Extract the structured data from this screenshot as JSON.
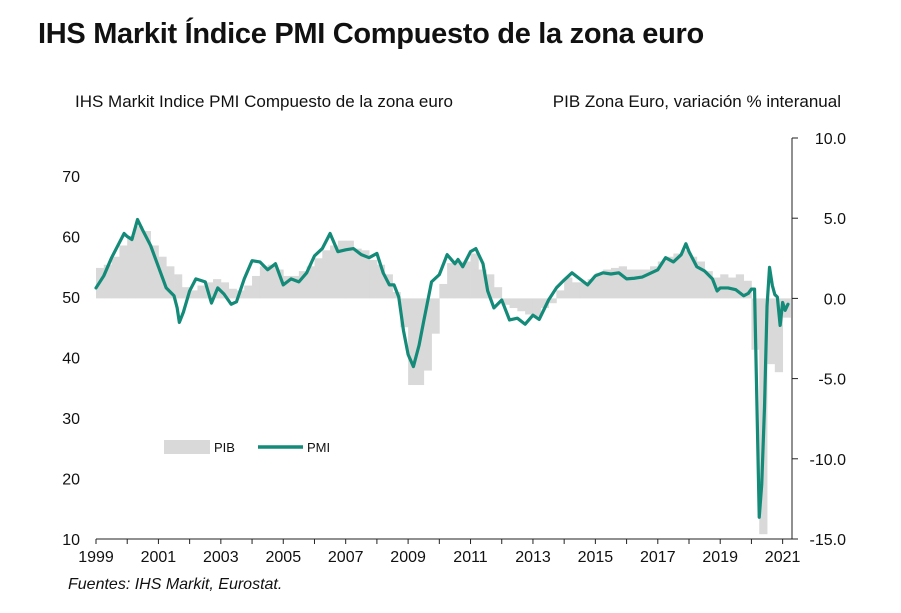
{
  "page": {
    "title": "IHS Markit Índice PMI Compuesto de la zona euro",
    "subtitle_left": "IHS Markit Indice PMI Compuesto de la zona euro",
    "subtitle_right": "PIB Zona Euro, variación % interanual",
    "source": "Fuentes: IHS Markit, Eurostat."
  },
  "chart_data": {
    "type": "line",
    "colors": {
      "pmi": "#148a78",
      "gdp": "#d9d9d9"
    },
    "x_ticks": [
      "1999",
      "2001",
      "2003",
      "2005",
      "2007",
      "2009",
      "2011",
      "2013",
      "2015",
      "2017",
      "2019",
      "2021"
    ],
    "y_left": {
      "ylim": [
        10,
        70
      ],
      "ticks": [
        "10",
        "20",
        "30",
        "40",
        "50",
        "60",
        "70"
      ]
    },
    "y_right": {
      "ylim": [
        -15,
        10
      ],
      "ticks": [
        "-15.0",
        "-10.0",
        "-5.0",
        "0.0",
        "5.0",
        "10.0"
      ]
    },
    "legend": {
      "position": "center-left",
      "items": [
        "PIB",
        "PMI"
      ]
    },
    "series": [
      {
        "name": "PMI",
        "kind": "line",
        "axis": "left",
        "points": [
          [
            1999.0,
            51.5
          ],
          [
            1999.25,
            53.5
          ],
          [
            1999.5,
            56.5
          ],
          [
            1999.75,
            59
          ],
          [
            1999.9,
            60.5
          ],
          [
            2000.0,
            60
          ],
          [
            2000.15,
            59.5
          ],
          [
            2000.33,
            62.8
          ],
          [
            2000.5,
            61
          ],
          [
            2000.75,
            58.5
          ],
          [
            2001.0,
            55
          ],
          [
            2001.25,
            51.5
          ],
          [
            2001.5,
            50.2
          ],
          [
            2001.6,
            48.2
          ],
          [
            2001.67,
            45.8
          ],
          [
            2001.8,
            47.5
          ],
          [
            2002.0,
            51
          ],
          [
            2002.2,
            53
          ],
          [
            2002.5,
            52.5
          ],
          [
            2002.7,
            49
          ],
          [
            2002.9,
            51.5
          ],
          [
            2003.1,
            50.5
          ],
          [
            2003.33,
            48.8
          ],
          [
            2003.5,
            49.2
          ],
          [
            2003.75,
            53
          ],
          [
            2004.0,
            56
          ],
          [
            2004.25,
            55.8
          ],
          [
            2004.5,
            54.5
          ],
          [
            2004.75,
            55.5
          ],
          [
            2005.0,
            52
          ],
          [
            2005.25,
            53
          ],
          [
            2005.5,
            52.5
          ],
          [
            2005.75,
            54
          ],
          [
            2006.0,
            56.8
          ],
          [
            2006.25,
            58
          ],
          [
            2006.5,
            60.5
          ],
          [
            2006.75,
            57.5
          ],
          [
            2007.0,
            57.8
          ],
          [
            2007.25,
            58
          ],
          [
            2007.5,
            57
          ],
          [
            2007.75,
            56.5
          ],
          [
            2008.0,
            57.2
          ],
          [
            2008.2,
            54
          ],
          [
            2008.4,
            52
          ],
          [
            2008.55,
            52
          ],
          [
            2008.7,
            50
          ],
          [
            2008.85,
            44.5
          ],
          [
            2009.0,
            40.5
          ],
          [
            2009.17,
            38.5
          ],
          [
            2009.35,
            42
          ],
          [
            2009.5,
            46
          ],
          [
            2009.75,
            52.5
          ],
          [
            2010.0,
            53.7
          ],
          [
            2010.25,
            57
          ],
          [
            2010.5,
            55.5
          ],
          [
            2010.6,
            56.2
          ],
          [
            2010.75,
            55
          ],
          [
            2011.0,
            57.5
          ],
          [
            2011.17,
            58
          ],
          [
            2011.4,
            55.5
          ],
          [
            2011.55,
            51
          ],
          [
            2011.75,
            48.2
          ],
          [
            2012.0,
            49.5
          ],
          [
            2012.25,
            46.2
          ],
          [
            2012.5,
            46.5
          ],
          [
            2012.75,
            45.5
          ],
          [
            2013.0,
            47
          ],
          [
            2013.2,
            46.3
          ],
          [
            2013.5,
            49.5
          ],
          [
            2013.75,
            51.5
          ],
          [
            2014.0,
            52.8
          ],
          [
            2014.25,
            54
          ],
          [
            2014.5,
            53
          ],
          [
            2014.75,
            52
          ],
          [
            2015.0,
            53.5
          ],
          [
            2015.25,
            54
          ],
          [
            2015.5,
            53.8
          ],
          [
            2015.75,
            54
          ],
          [
            2016.0,
            53
          ],
          [
            2016.25,
            53.1
          ],
          [
            2016.5,
            53.3
          ],
          [
            2016.75,
            53.9
          ],
          [
            2017.0,
            54.5
          ],
          [
            2017.25,
            56.5
          ],
          [
            2017.5,
            55.8
          ],
          [
            2017.75,
            57
          ],
          [
            2017.9,
            58.8
          ],
          [
            2018.0,
            57.5
          ],
          [
            2018.25,
            55
          ],
          [
            2018.5,
            54.3
          ],
          [
            2018.75,
            53
          ],
          [
            2018.9,
            51
          ],
          [
            2019.0,
            51.5
          ],
          [
            2019.25,
            51.5
          ],
          [
            2019.5,
            51.2
          ],
          [
            2019.75,
            50.2
          ],
          [
            2019.9,
            50.6
          ],
          [
            2020.0,
            51.3
          ],
          [
            2020.1,
            51.3
          ],
          [
            2020.25,
            13.6
          ],
          [
            2020.33,
            19.0
          ],
          [
            2020.42,
            31.9
          ],
          [
            2020.5,
            48.5
          ],
          [
            2020.58,
            54.9
          ],
          [
            2020.67,
            51.9
          ],
          [
            2020.75,
            50.4
          ],
          [
            2020.83,
            50.0
          ],
          [
            2020.92,
            45.3
          ],
          [
            2021.0,
            49.1
          ],
          [
            2021.08,
            47.8
          ],
          [
            2021.17,
            48.8
          ]
        ]
      },
      {
        "name": "PIB",
        "kind": "bar",
        "axis": "right",
        "points": [
          [
            1999.0,
            1.9
          ],
          [
            1999.25,
            2.1
          ],
          [
            1999.5,
            2.6
          ],
          [
            1999.75,
            3.3
          ],
          [
            2000.0,
            3.9
          ],
          [
            2000.25,
            4.5
          ],
          [
            2000.5,
            4.2
          ],
          [
            2000.75,
            3.3
          ],
          [
            2001.0,
            2.6
          ],
          [
            2001.25,
            2.0
          ],
          [
            2001.5,
            1.5
          ],
          [
            2001.75,
            0.7
          ],
          [
            2002.0,
            0.5
          ],
          [
            2002.25,
            0.8
          ],
          [
            2002.5,
            1.0
          ],
          [
            2002.75,
            1.2
          ],
          [
            2003.0,
            1.0
          ],
          [
            2003.25,
            0.6
          ],
          [
            2003.5,
            0.5
          ],
          [
            2003.75,
            0.8
          ],
          [
            2004.0,
            1.4
          ],
          [
            2004.25,
            2.0
          ],
          [
            2004.5,
            2.1
          ],
          [
            2004.75,
            1.8
          ],
          [
            2005.0,
            1.4
          ],
          [
            2005.25,
            1.4
          ],
          [
            2005.5,
            1.7
          ],
          [
            2005.75,
            2.0
          ],
          [
            2006.0,
            2.5
          ],
          [
            2006.25,
            3.0
          ],
          [
            2006.5,
            3.3
          ],
          [
            2006.75,
            3.6
          ],
          [
            2007.0,
            3.6
          ],
          [
            2007.25,
            3.1
          ],
          [
            2007.5,
            3.0
          ],
          [
            2007.75,
            2.4
          ],
          [
            2008.0,
            2.1
          ],
          [
            2008.25,
            1.5
          ],
          [
            2008.5,
            0.4
          ],
          [
            2008.75,
            -1.8
          ],
          [
            2009.0,
            -5.4
          ],
          [
            2009.25,
            -5.4
          ],
          [
            2009.5,
            -4.5
          ],
          [
            2009.75,
            -2.2
          ],
          [
            2010.0,
            0.9
          ],
          [
            2010.25,
            2.2
          ],
          [
            2010.5,
            2.3
          ],
          [
            2010.75,
            2.3
          ],
          [
            2011.0,
            2.8
          ],
          [
            2011.25,
            1.8
          ],
          [
            2011.5,
            1.5
          ],
          [
            2011.75,
            0.7
          ],
          [
            2012.0,
            -0.4
          ],
          [
            2012.25,
            -0.6
          ],
          [
            2012.5,
            -0.8
          ],
          [
            2012.75,
            -1.0
          ],
          [
            2013.0,
            -1.1
          ],
          [
            2013.25,
            -0.6
          ],
          [
            2013.5,
            -0.3
          ],
          [
            2013.75,
            0.5
          ],
          [
            2014.0,
            1.3
          ],
          [
            2014.25,
            1.0
          ],
          [
            2014.5,
            1.0
          ],
          [
            2014.75,
            1.2
          ],
          [
            2015.0,
            1.6
          ],
          [
            2015.25,
            1.8
          ],
          [
            2015.5,
            1.9
          ],
          [
            2015.75,
            2.0
          ],
          [
            2016.0,
            1.8
          ],
          [
            2016.25,
            1.8
          ],
          [
            2016.5,
            1.8
          ],
          [
            2016.75,
            2.0
          ],
          [
            2017.0,
            2.3
          ],
          [
            2017.25,
            2.6
          ],
          [
            2017.5,
            2.8
          ],
          [
            2017.75,
            3.0
          ],
          [
            2018.0,
            2.6
          ],
          [
            2018.25,
            2.3
          ],
          [
            2018.5,
            1.7
          ],
          [
            2018.75,
            1.3
          ],
          [
            2019.0,
            1.5
          ],
          [
            2019.25,
            1.3
          ],
          [
            2019.5,
            1.5
          ],
          [
            2019.75,
            1.1
          ],
          [
            2020.0,
            -3.2
          ],
          [
            2020.25,
            -14.7
          ],
          [
            2020.5,
            -4.1
          ],
          [
            2020.75,
            -4.6
          ],
          [
            2021.0,
            -1.2
          ]
        ]
      }
    ]
  }
}
